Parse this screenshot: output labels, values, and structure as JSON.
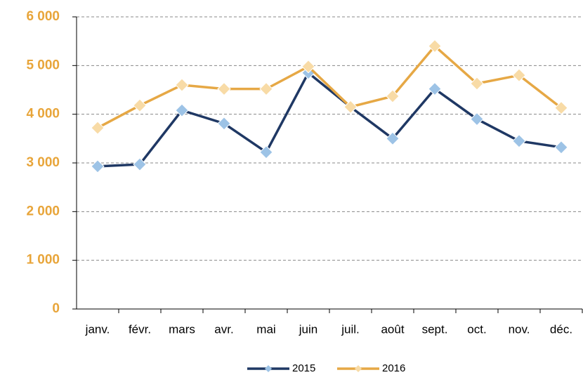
{
  "chart_data": {
    "type": "line",
    "categories": [
      "janv.",
      "févr.",
      "mars",
      "avr.",
      "mai",
      "juin",
      "juil.",
      "août",
      "sept.",
      "oct.",
      "nov.",
      "déc."
    ],
    "series": [
      {
        "name": "2015",
        "color": "#1f3864",
        "marker_color": "#9dc3e6",
        "values": [
          2930,
          2970,
          4080,
          3810,
          3220,
          4850,
          4150,
          3500,
          4520,
          3900,
          3450,
          3320
        ]
      },
      {
        "name": "2016",
        "color": "#e6a845",
        "marker_color": "#f8dba6",
        "values": [
          3720,
          4180,
          4600,
          4520,
          4520,
          4980,
          4150,
          4370,
          5400,
          4630,
          4800,
          4130
        ]
      }
    ],
    "ylim": [
      0,
      6000
    ],
    "yticks": [
      {
        "value": 0,
        "label": "0"
      },
      {
        "value": 1000,
        "label": "1 000"
      },
      {
        "value": 2000,
        "label": "2 000"
      },
      {
        "value": 3000,
        "label": "3 000"
      },
      {
        "value": 4000,
        "label": "4 000"
      },
      {
        "value": 5000,
        "label": "5 000"
      },
      {
        "value": 6000,
        "label": "6 000"
      }
    ],
    "grid": true,
    "legend": "bottom"
  }
}
